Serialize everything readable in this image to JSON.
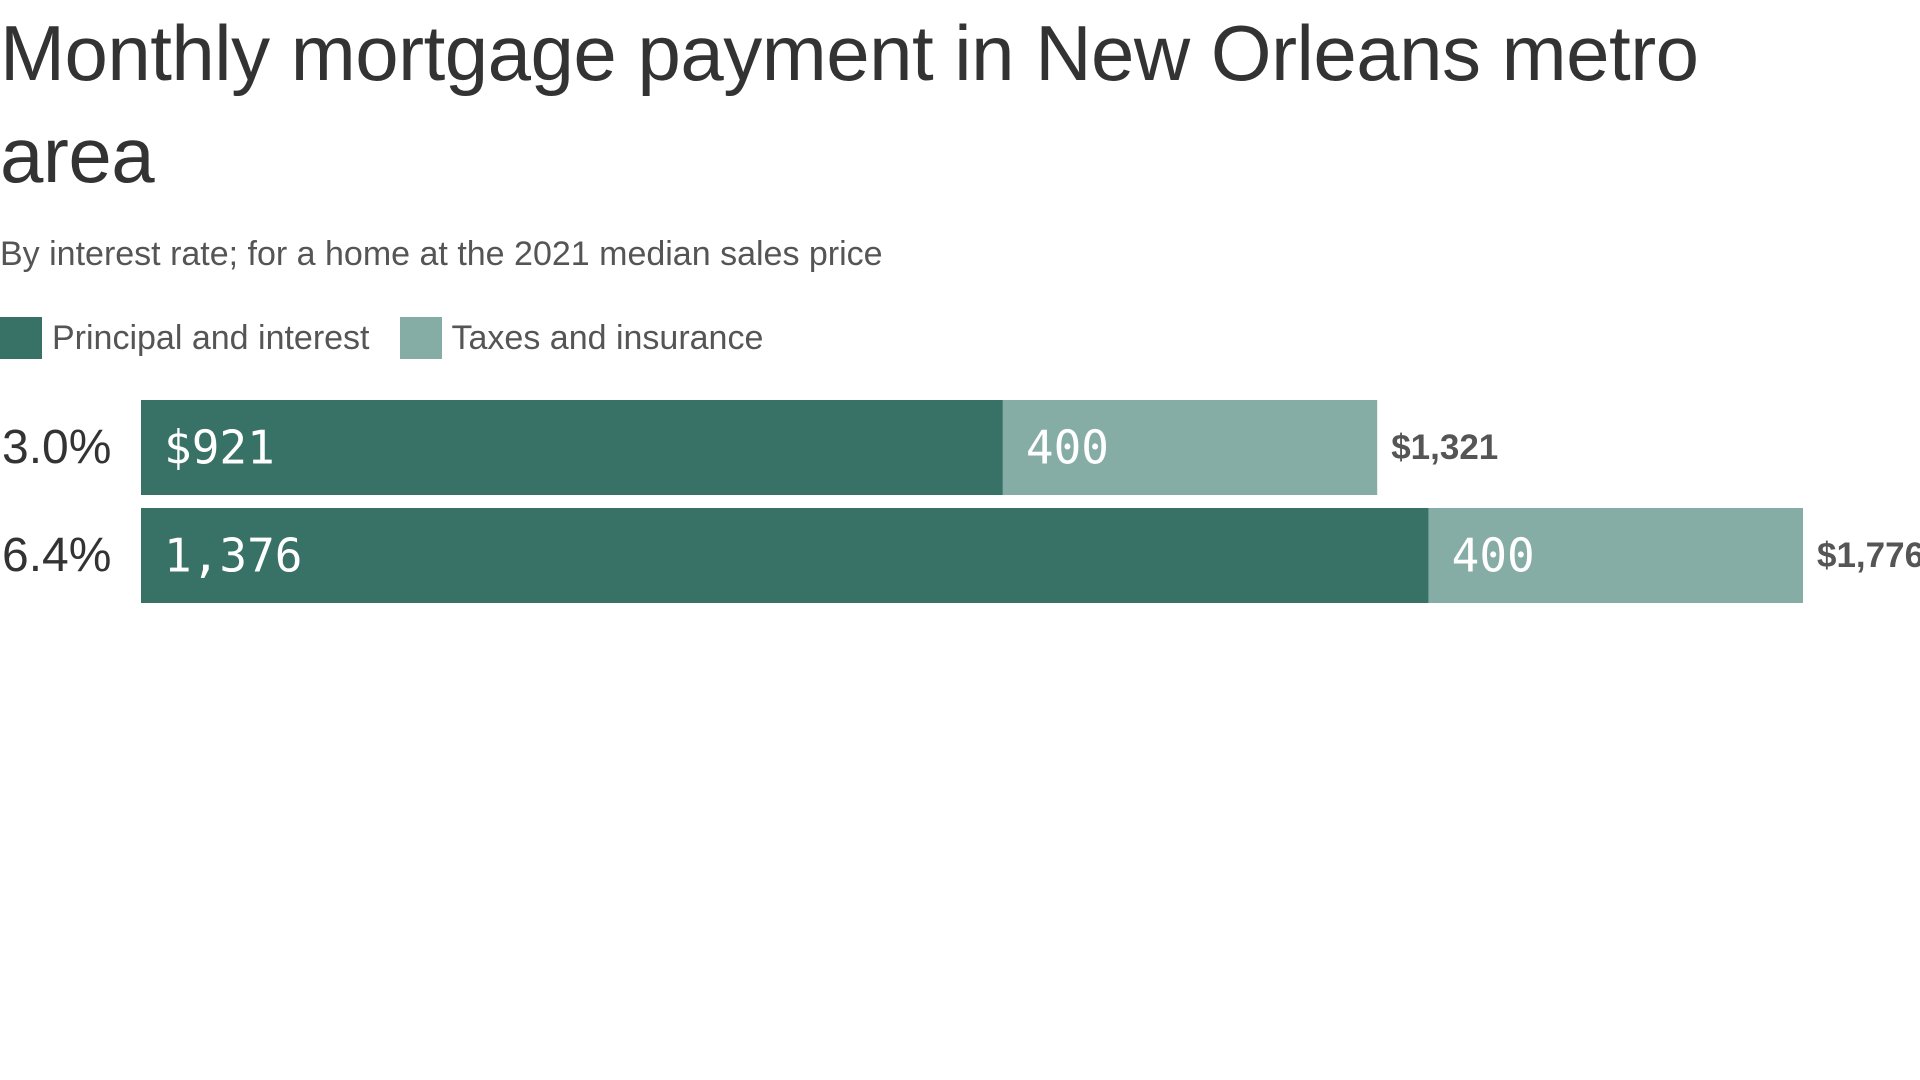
{
  "title": "Monthly mortgage payment in New Orleans metro area",
  "subtitle": "By interest rate; for a home at the 2021 median sales price",
  "legend": [
    {
      "label": "Principal and interest",
      "color": "#387266"
    },
    {
      "label": "Taxes and insurance",
      "color": "#85ADA6"
    }
  ],
  "chart_data": {
    "type": "bar",
    "orientation": "horizontal",
    "stacked": true,
    "categories": [
      "3.0%",
      "6.4%"
    ],
    "series": [
      {
        "name": "Principal and interest",
        "values": [
          921,
          1376
        ],
        "labels": [
          "$921",
          "1,376"
        ],
        "color": "#387266"
      },
      {
        "name": "Taxes and insurance",
        "values": [
          400,
          400
        ],
        "labels": [
          "400",
          "400"
        ],
        "color": "#85ADA6"
      }
    ],
    "totals": [
      1321,
      1776
    ],
    "total_labels": [
      "$1,321",
      "$1,776"
    ],
    "xlim": [
      0,
      1776
    ],
    "grid": false,
    "legend_position": "top-left"
  }
}
